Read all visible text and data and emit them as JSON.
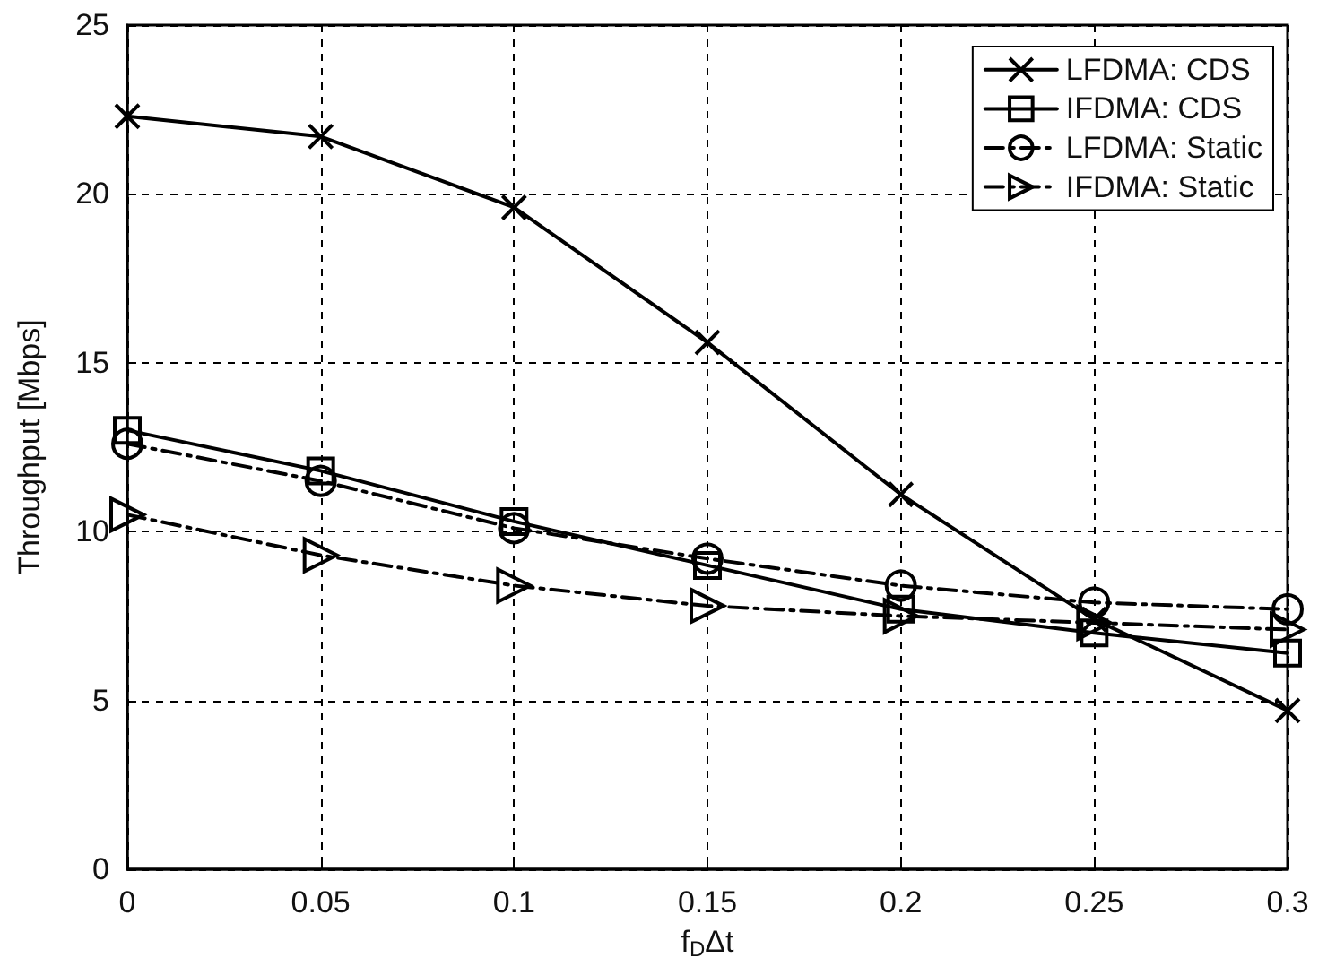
{
  "chart_data": {
    "type": "line",
    "xlabel": "f$_{D}$Δt",
    "ylabel": "Throughput [Mbps]",
    "x": [
      0,
      0.05,
      0.1,
      0.15,
      0.2,
      0.25,
      0.3
    ],
    "xlim": [
      0,
      0.3
    ],
    "xticks": [
      0,
      0.05,
      0.1,
      0.15,
      0.2,
      0.25,
      0.3
    ],
    "ylim": [
      0,
      25
    ],
    "yticks": [
      0,
      5,
      10,
      15,
      20,
      25
    ],
    "grid": true,
    "legend": "top right",
    "series": [
      {
        "name": "LFDMA: CDS",
        "color": "#000000",
        "marker": "cross",
        "line_style": "solid",
        "values": [
          22.3,
          21.7,
          19.6,
          15.6,
          11.1,
          7.4,
          4.7
        ]
      },
      {
        "name": "IFDMA: CDS",
        "color": "#000000",
        "marker": "square",
        "line_style": "solid",
        "values": [
          13.0,
          11.8,
          10.3,
          9.0,
          7.7,
          7.0,
          6.4
        ]
      },
      {
        "name": "LFDMA: Static",
        "color": "#000000",
        "marker": "circle",
        "line_style": "dashed",
        "values": [
          12.6,
          11.5,
          10.1,
          9.2,
          8.4,
          7.9,
          7.7
        ]
      },
      {
        "name": "IFDMA: Static",
        "color": "#000000",
        "marker": "triangle",
        "line_style": "dashed",
        "values": [
          10.5,
          9.3,
          8.4,
          7.8,
          7.5,
          7.3,
          7.1
        ]
      }
    ]
  }
}
